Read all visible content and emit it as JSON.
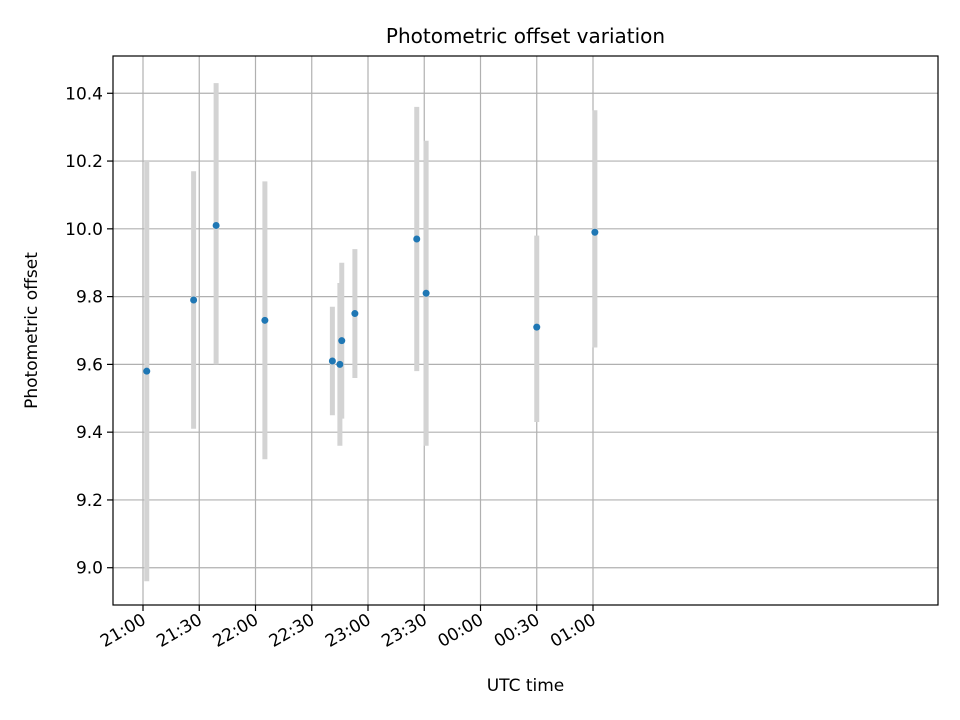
{
  "chart_data": {
    "type": "scatter",
    "title": "Photometric offset variation",
    "xlabel": "UTC time",
    "ylabel": "Photometric offset",
    "x_unit": "minutes after 21:00 UTC",
    "xlim": [
      -16,
      424
    ],
    "ylim": [
      8.89,
      10.51
    ],
    "grid": true,
    "x_ticks": [
      {
        "value": 0,
        "label": "21:00"
      },
      {
        "value": 30,
        "label": "21:30"
      },
      {
        "value": 60,
        "label": "22:00"
      },
      {
        "value": 90,
        "label": "22:30"
      },
      {
        "value": 120,
        "label": "23:00"
      },
      {
        "value": 150,
        "label": "23:30"
      },
      {
        "value": 180,
        "label": "00:00"
      },
      {
        "value": 210,
        "label": "00:30"
      },
      {
        "value": 240,
        "label": "01:00"
      }
    ],
    "y_ticks": [
      {
        "value": 9.0,
        "label": "9.0"
      },
      {
        "value": 9.2,
        "label": "9.2"
      },
      {
        "value": 9.4,
        "label": "9.4"
      },
      {
        "value": 9.6,
        "label": "9.6"
      },
      {
        "value": 9.8,
        "label": "9.8"
      },
      {
        "value": 10.0,
        "label": "10.0"
      },
      {
        "value": 10.2,
        "label": "10.2"
      },
      {
        "value": 10.4,
        "label": "10.4"
      }
    ],
    "points": [
      {
        "x": 2.0,
        "y": 9.58,
        "ylow": 8.96,
        "yhigh": 10.2
      },
      {
        "x": 27.0,
        "y": 9.79,
        "ylow": 9.41,
        "yhigh": 10.17
      },
      {
        "x": 39.0,
        "y": 10.01,
        "ylow": 9.6,
        "yhigh": 10.43
      },
      {
        "x": 65.0,
        "y": 9.73,
        "ylow": 9.32,
        "yhigh": 10.14
      },
      {
        "x": 101.0,
        "y": 9.61,
        "ylow": 9.45,
        "yhigh": 9.77
      },
      {
        "x": 105.0,
        "y": 9.6,
        "ylow": 9.36,
        "yhigh": 9.84
      },
      {
        "x": 106.0,
        "y": 9.67,
        "ylow": 9.44,
        "yhigh": 9.9
      },
      {
        "x": 113.0,
        "y": 9.75,
        "ylow": 9.56,
        "yhigh": 9.94
      },
      {
        "x": 146.0,
        "y": 9.97,
        "ylow": 9.58,
        "yhigh": 10.36
      },
      {
        "x": 151.0,
        "y": 9.81,
        "ylow": 9.36,
        "yhigh": 10.26
      },
      {
        "x": 210.0,
        "y": 9.71,
        "ylow": 9.43,
        "yhigh": 9.98
      },
      {
        "x": 241.0,
        "y": 9.99,
        "ylow": 9.65,
        "yhigh": 10.35
      }
    ],
    "colors": {
      "marker": "#1f77b4",
      "errorbar": "#d3d3d3",
      "grid": "#b0b0b0",
      "axis": "#000000"
    }
  }
}
